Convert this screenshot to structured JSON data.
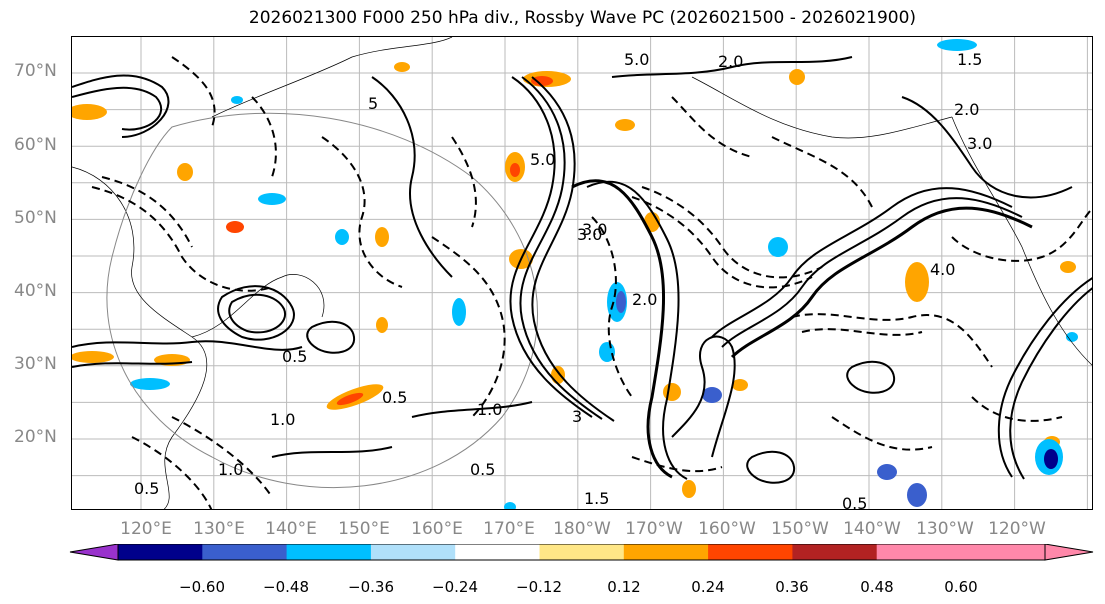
{
  "title": "2026021300 F000 250 hPa div., Rossby Wave PC (2026021500 - 2026021900)",
  "map": {
    "lat_labels": [
      "70°N",
      "60°N",
      "50°N",
      "40°N",
      "30°N",
      "20°N"
    ],
    "lon_labels": [
      "120°E",
      "130°E",
      "140°E",
      "150°E",
      "160°E",
      "170°E",
      "180°W",
      "170°W",
      "160°W",
      "150°W",
      "140°W",
      "130°W",
      "120°W"
    ],
    "contour_labels": [
      "5.0",
      "5.0",
      "2.0",
      "1.5",
      "3.0",
      "2.0",
      "3.0",
      "4.0",
      "0.5",
      "0.5",
      "1.0",
      "1.0",
      "1.0",
      "1.5",
      "0.5",
      "0.5",
      "0.5",
      "2.0",
      "3.0",
      "5",
      "3"
    ]
  },
  "colorbar": {
    "ticks": [
      "−0.60",
      "−0.48",
      "−0.36",
      "−0.24",
      "−0.12",
      "0.12",
      "0.24",
      "0.36",
      "0.48",
      "0.60"
    ],
    "colors": [
      "#9932cc",
      "#00008b",
      "#3a5fcd",
      "#00bfff",
      "#b0e0fa",
      "#ffffff",
      "#ffe787",
      "#ffa500",
      "#ff4500",
      "#b22222",
      "#ff88aa",
      "#ff88aa"
    ]
  }
}
